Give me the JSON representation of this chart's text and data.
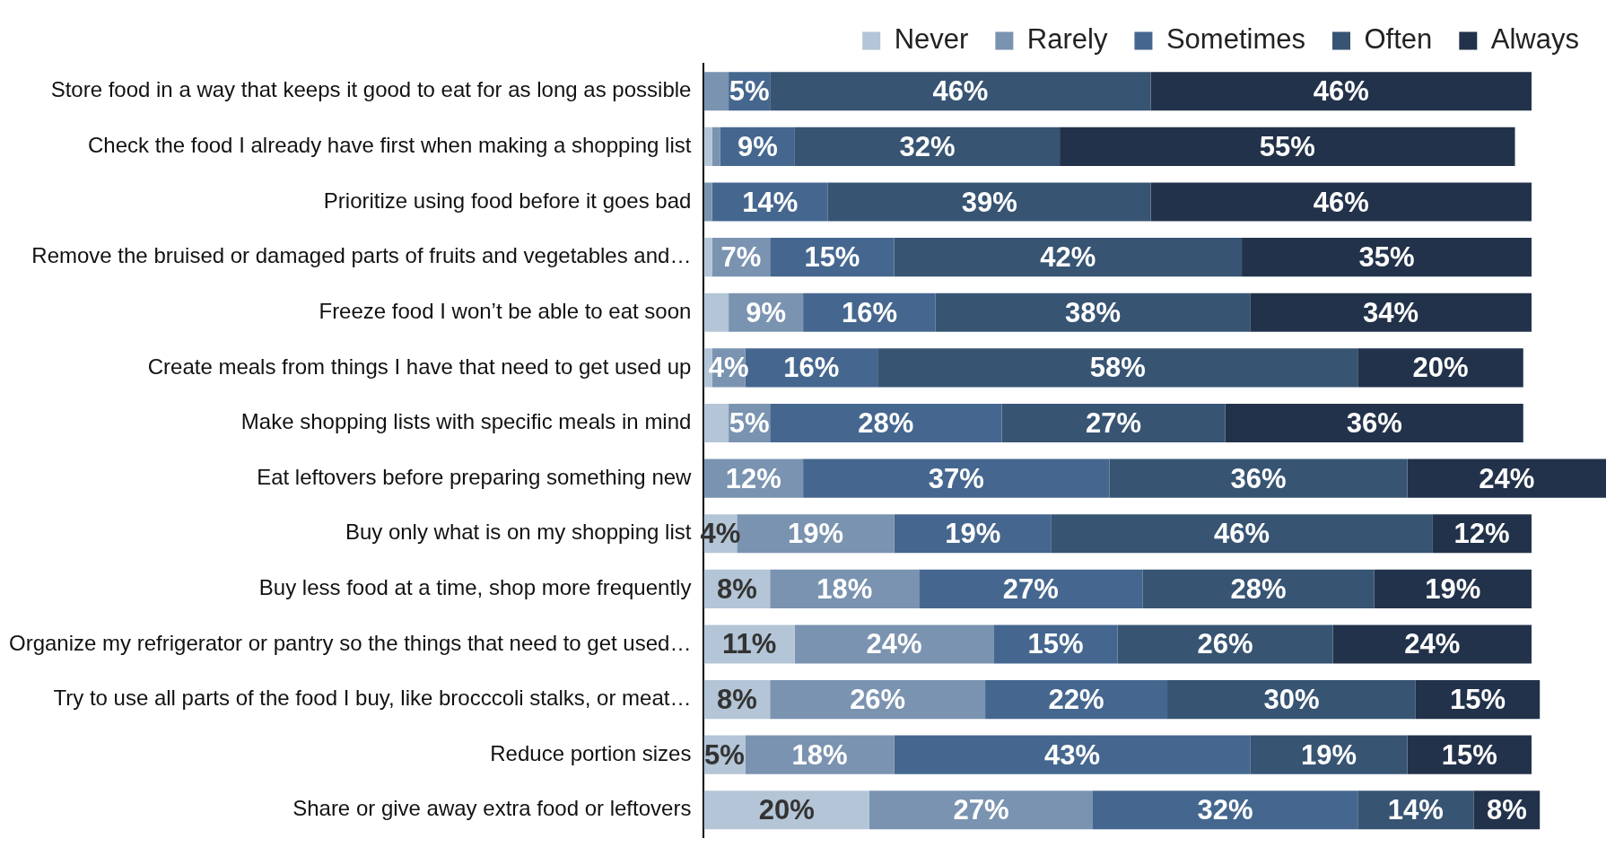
{
  "chart_data": {
    "type": "bar",
    "orientation": "horizontal",
    "stacked": true,
    "categories": [
      "Store food in a way that keeps it good to eat for as long as possible",
      "Check the food I already have first when making a shopping list",
      "Prioritize using food before it goes bad",
      "Remove the bruised or damaged parts of fruits and vegetables and…",
      "Freeze food I won’t be able to eat soon",
      "Create meals from things I have that need to get used up",
      "Make shopping lists with specific meals in mind",
      "Eat leftovers before preparing something new",
      "Buy only what is on my shopping list",
      "Buy less food at a time, shop more frequently",
      "Organize my refrigerator or pantry so the things that need to get used…",
      "Try to use all parts of the food I buy, like brocccoli stalks, or meat…",
      "Reduce portion sizes",
      "Share or give away extra food or leftovers"
    ],
    "series": [
      {
        "name": "Never",
        "color": "#b3c5d6",
        "values": [
          0,
          1,
          0,
          1,
          3,
          1,
          3,
          0,
          4,
          8,
          11,
          8,
          5,
          20
        ],
        "value_labels": [
          null,
          null,
          null,
          null,
          null,
          null,
          null,
          null,
          "4%",
          "8%",
          "11%",
          "8%",
          "5%",
          "20%"
        ]
      },
      {
        "name": "Rarely",
        "color": "#7a93b0",
        "values": [
          3,
          1,
          1,
          7,
          9,
          4,
          5,
          12,
          19,
          18,
          24,
          26,
          18,
          27
        ],
        "value_labels": [
          null,
          null,
          null,
          "7%",
          "9%",
          "4%",
          "5%",
          "12%",
          "19%",
          "18%",
          "24%",
          "26%",
          "18%",
          "27%"
        ]
      },
      {
        "name": "Sometimes",
        "color": "#45678f",
        "values": [
          5,
          9,
          14,
          15,
          16,
          16,
          28,
          37,
          19,
          27,
          15,
          22,
          43,
          32
        ],
        "value_labels": [
          "5%",
          "9%",
          "14%",
          "15%",
          "16%",
          "16%",
          "28%",
          "37%",
          "19%",
          "27%",
          "15%",
          "22%",
          "43%",
          "32%"
        ]
      },
      {
        "name": "Often",
        "color": "#375473",
        "values": [
          46,
          32,
          39,
          42,
          38,
          58,
          27,
          36,
          46,
          28,
          26,
          30,
          19,
          14
        ],
        "value_labels": [
          "46%",
          "32%",
          "39%",
          "42%",
          "38%",
          "58%",
          "27%",
          "36%",
          "46%",
          "28%",
          "26%",
          "30%",
          "19%",
          "14%"
        ]
      },
      {
        "name": "Always",
        "color": "#22324a",
        "values": [
          46,
          55,
          46,
          35,
          34,
          20,
          36,
          24,
          12,
          19,
          24,
          15,
          15,
          8
        ],
        "value_labels": [
          "46%",
          "55%",
          "46%",
          "35%",
          "34%",
          "20%",
          "36%",
          "24%",
          "12%",
          "19%",
          "24%",
          "15%",
          "15%",
          "8%"
        ]
      }
    ],
    "xlim": [
      0,
      109
    ],
    "tick_labels": "y",
    "grid": false,
    "legend": "top right"
  }
}
